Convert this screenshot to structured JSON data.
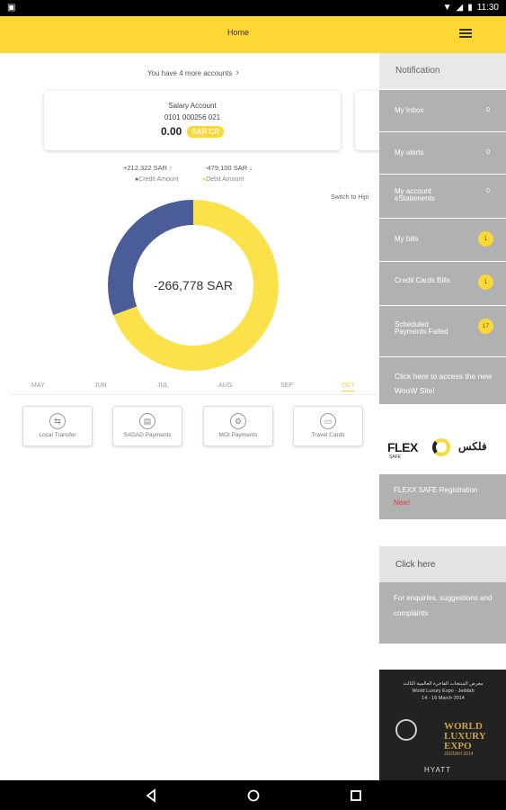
{
  "status_bar": {
    "time": "11:30"
  },
  "app_bar": {
    "title": "Home"
  },
  "accounts": {
    "more_link": "You have 4 more accounts"
  },
  "account_card": {
    "name": "Salary Account",
    "number": "0101 000256 021",
    "balance": "0.00",
    "currency_badge": "SAR CR"
  },
  "summary": {
    "credit_value": "+212,322 SAR",
    "debit_value": "-479,100 SAR",
    "credit_legend": "Credit Amount",
    "debit_legend": "Debit Amount",
    "switch_label": "Switch to Hijri"
  },
  "chart_data": {
    "type": "pie",
    "center_label": "-266,778 SAR",
    "slices": [
      {
        "label": "Credit Amount",
        "value": 212322,
        "color": "#4a5d99"
      },
      {
        "label": "Debit Amount",
        "value": 479100,
        "color": "#fde14a"
      }
    ]
  },
  "months": {
    "items": [
      "MAY",
      "JUN",
      "JUL",
      "AUG",
      "SEP",
      "OCT"
    ],
    "selected": "OCT"
  },
  "quick_actions": [
    {
      "label": "Local Transfer"
    },
    {
      "label": "SADAD Payments"
    },
    {
      "label": "MOI Payments"
    },
    {
      "label": "Travel Cards"
    }
  ],
  "sidebar": {
    "header": "Notification",
    "items": [
      {
        "label": "My Inbox",
        "count": "0"
      },
      {
        "label": "My alerts",
        "count": "0"
      },
      {
        "label": "My account eStatements",
        "count": "0"
      },
      {
        "label": "My bills",
        "count": "1"
      },
      {
        "label": "Credit Cards Bills",
        "count": "1"
      },
      {
        "label": "Scheduled Payments Failed",
        "count": "17"
      },
      {
        "label": "Click here to access the new WooW Site!",
        "count": ""
      }
    ],
    "promo": {
      "brand": "FLEX",
      "sub": "SAFE",
      "arabic": "فلكس"
    },
    "registration": {
      "label": "FLEXX SAFE Registration",
      "badge": "New!"
    },
    "click_here": "Click here",
    "enquiries": "For enquiries, suggestions and complaints",
    "ad": {
      "line1": "معرض المنتجات الفاخرة العالمية الثالث",
      "line2": "World Luxury Expo - Jeddah",
      "line3": "14 - 16 March 2014",
      "logo_text": "WORLD LUXURY EXPO",
      "logo_sub": "JEDDAH 2014",
      "hotel": "HYATT"
    }
  },
  "colors": {
    "accent": "#fdd835",
    "credit": "#4a5d99",
    "debit": "#fde14a",
    "sidebar_item": "#b1b1b1"
  }
}
